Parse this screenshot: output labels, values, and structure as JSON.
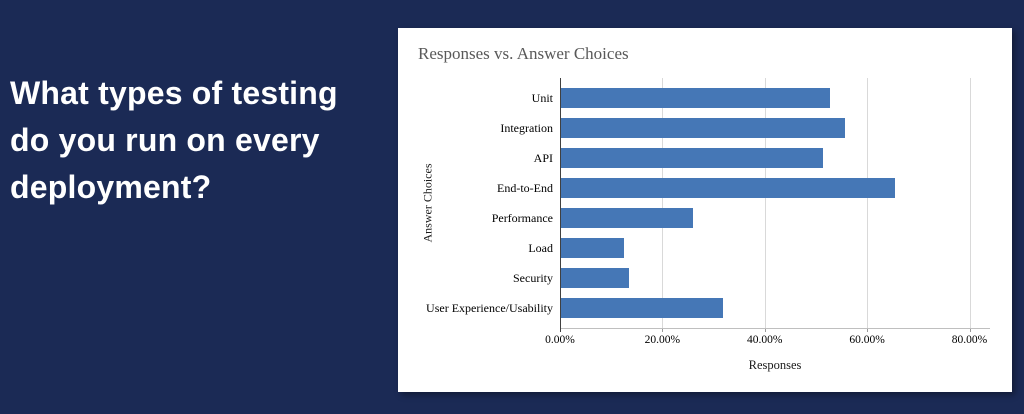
{
  "slide": {
    "background_color": "#1b2a55",
    "question_text": "What types of testing\ndo you run on every\ndeployment?"
  },
  "chart_data": {
    "type": "bar",
    "orientation": "horizontal",
    "title": "Responses vs. Answer Choices",
    "xlabel": "Responses",
    "ylabel": "Answer Choices",
    "categories": [
      "Unit",
      "Integration",
      "API",
      "End-to-End",
      "Performance",
      "Load",
      "Security",
      "User Experience/Usability"
    ],
    "values": [
      52.6,
      55.4,
      51.1,
      65.2,
      25.8,
      12.3,
      13.2,
      31.6
    ],
    "unit": "%",
    "xlim": [
      0,
      84
    ],
    "xticks": [
      0,
      20,
      40,
      60,
      80
    ],
    "xtick_labels": [
      "0.00%",
      "20.00%",
      "40.00%",
      "60.00%",
      "80.00%"
    ],
    "bar_color": "#4577b6",
    "gridlines": true,
    "legend": "none",
    "title_color": "#595959",
    "panel_color": "#ffffff"
  }
}
